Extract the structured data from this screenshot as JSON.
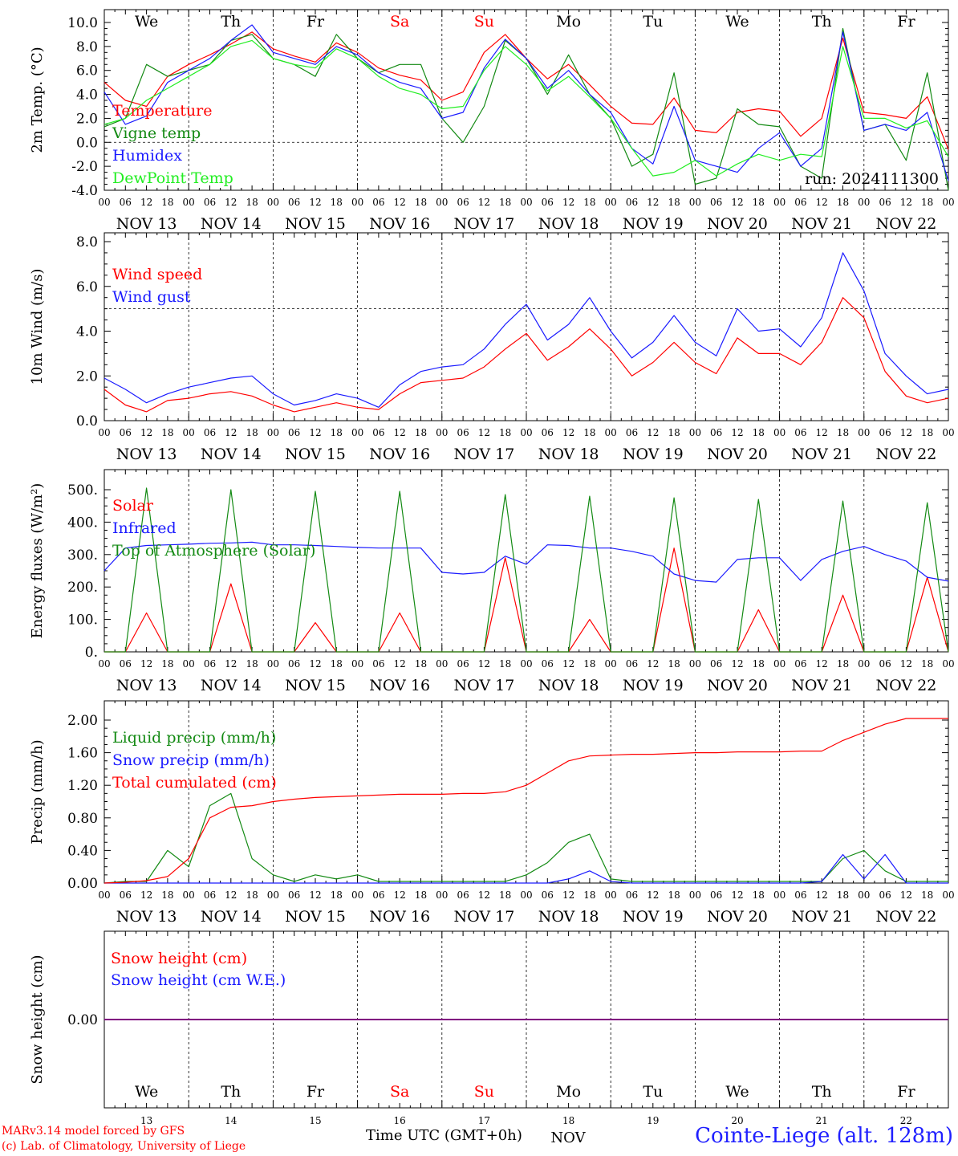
{
  "colors": {
    "red": "#ff0000",
    "green": "#138a13",
    "blue": "#1a1aff",
    "lightgreen": "#22ee22",
    "purple": "#800080",
    "axis": "#000000"
  },
  "days": [
    "We",
    "Th",
    "Fr",
    "Sa",
    "Su",
    "Mo",
    "Tu",
    "We",
    "Th",
    "Fr"
  ],
  "weekend_days": [
    "Sa",
    "Su"
  ],
  "dates": [
    "NOV 13",
    "NOV 14",
    "NOV 15",
    "NOV 16",
    "NOV 17",
    "NOV 18",
    "NOV 19",
    "NOV 20",
    "NOV 21",
    "NOV 22"
  ],
  "day_numbers": [
    "13",
    "14",
    "15",
    "16",
    "17",
    "18",
    "19",
    "20",
    "21",
    "22"
  ],
  "hour_ticks": [
    "00",
    "06",
    "12",
    "18"
  ],
  "hour_tick_end": "00",
  "month_label": "NOV",
  "footer": {
    "model_line": "MARv3.14 model forced by GFS",
    "credit_line": "(c) Lab. of Climatology, University of Liege",
    "xlabel": "Time UTC (GMT+0h)",
    "station": "Cointe-Liege (alt. 128m)"
  },
  "chart_data": [
    {
      "type": "line",
      "ylabel": "2m Temp. (°C)",
      "ylim": [
        -4,
        11
      ],
      "yticks": [
        "10.0",
        "8.0",
        "6.0",
        "4.0",
        "2.0",
        "0.0",
        "-2.0",
        "-4.0"
      ],
      "ytick_values": [
        10,
        8,
        6,
        4,
        2,
        0,
        -2,
        -4
      ],
      "ref_line": 0,
      "annotation": "run: 2024111300",
      "x_hours": [
        0,
        6,
        12,
        18,
        24,
        30,
        36,
        42,
        48,
        54,
        60,
        66,
        72,
        78,
        84,
        90,
        96,
        102,
        108,
        114,
        120,
        126,
        132,
        138,
        144,
        150,
        156,
        162,
        168,
        174,
        180,
        186,
        192,
        198,
        204,
        210,
        216,
        222,
        228,
        234,
        240
      ],
      "series": [
        {
          "name": "Temperature",
          "color": "red",
          "values": [
            5.0,
            3.5,
            3.0,
            5.5,
            6.5,
            7.3,
            8.2,
            9.2,
            7.8,
            7.2,
            6.7,
            8.3,
            7.5,
            6.2,
            5.6,
            5.2,
            3.5,
            4.2,
            7.5,
            9.0,
            7.0,
            5.3,
            6.5,
            4.8,
            3.0,
            1.6,
            1.5,
            3.7,
            1.0,
            0.8,
            2.5,
            2.8,
            2.6,
            0.5,
            2.0,
            8.7,
            2.5,
            2.3,
            2.0,
            3.8,
            -0.6
          ]
        },
        {
          "name": "Vigne temp",
          "color": "green",
          "values": [
            1.3,
            2.0,
            6.5,
            5.5,
            6.0,
            6.5,
            8.5,
            9.0,
            7.0,
            6.5,
            5.5,
            9.0,
            7.0,
            5.8,
            6.5,
            6.5,
            2.0,
            0.0,
            3.0,
            8.5,
            7.0,
            4.0,
            7.3,
            4.0,
            2.0,
            -2.0,
            -1.0,
            5.8,
            -3.5,
            -3.0,
            2.8,
            1.5,
            1.3,
            -2.0,
            -3.0,
            9.5,
            1.0,
            1.5,
            -1.5,
            5.8,
            -4.0
          ]
        },
        {
          "name": "Humidex",
          "color": "blue",
          "values": [
            4.2,
            1.5,
            2.2,
            5.0,
            6.0,
            7.0,
            8.5,
            9.8,
            7.5,
            7.0,
            6.5,
            8.0,
            7.3,
            5.8,
            5.0,
            4.5,
            2.0,
            2.5,
            6.2,
            8.6,
            7.0,
            4.5,
            6.0,
            4.0,
            2.5,
            -0.5,
            -1.8,
            3.0,
            -1.5,
            -2.0,
            -2.5,
            -0.5,
            0.8,
            -2.0,
            -0.5,
            9.2,
            1.0,
            1.5,
            1.0,
            2.5,
            -3.2
          ]
        },
        {
          "name": "DewPoint Temp",
          "color": "lightgreen",
          "values": [
            1.5,
            2.0,
            3.5,
            4.5,
            5.5,
            6.5,
            8.0,
            8.5,
            7.0,
            6.5,
            6.2,
            7.8,
            7.0,
            5.5,
            4.5,
            4.0,
            2.8,
            3.0,
            6.0,
            8.0,
            6.5,
            4.3,
            5.5,
            3.8,
            2.0,
            -0.5,
            -2.8,
            -2.5,
            -1.5,
            -2.8,
            -1.8,
            -1.0,
            -1.5,
            -1.0,
            -1.2,
            8.0,
            2.0,
            2.0,
            1.2,
            1.8,
            -1.2
          ]
        }
      ]
    },
    {
      "type": "line",
      "ylabel": "10m Wind (m/s)",
      "ylim": [
        0,
        8
      ],
      "yticks": [
        "8.0",
        "6.0",
        "4.0",
        "2.0",
        "0.0"
      ],
      "ytick_values": [
        8,
        6,
        4,
        2,
        0
      ],
      "ref_line": 5,
      "x_hours": [
        0,
        6,
        12,
        18,
        24,
        30,
        36,
        42,
        48,
        54,
        60,
        66,
        72,
        78,
        84,
        90,
        96,
        102,
        108,
        114,
        120,
        126,
        132,
        138,
        144,
        150,
        156,
        162,
        168,
        174,
        180,
        186,
        192,
        198,
        204,
        210,
        216,
        222,
        228,
        234,
        240
      ],
      "series": [
        {
          "name": "Wind speed",
          "color": "red",
          "values": [
            1.4,
            0.7,
            0.4,
            0.9,
            1.0,
            1.2,
            1.3,
            1.1,
            0.7,
            0.4,
            0.6,
            0.8,
            0.6,
            0.5,
            1.2,
            1.7,
            1.8,
            1.9,
            2.4,
            3.2,
            3.9,
            2.7,
            3.3,
            4.1,
            3.2,
            2.0,
            2.6,
            3.5,
            2.6,
            2.1,
            3.7,
            3.0,
            3.0,
            2.5,
            3.5,
            5.5,
            4.6,
            2.2,
            1.1,
            0.8,
            1.0
          ]
        },
        {
          "name": "Wind gust",
          "color": "blue",
          "values": [
            1.9,
            1.4,
            0.8,
            1.2,
            1.5,
            1.7,
            1.9,
            2.0,
            1.2,
            0.7,
            0.9,
            1.2,
            1.0,
            0.6,
            1.6,
            2.2,
            2.4,
            2.5,
            3.2,
            4.3,
            5.2,
            3.6,
            4.3,
            5.5,
            4.0,
            2.8,
            3.5,
            4.7,
            3.5,
            2.9,
            5.0,
            4.0,
            4.1,
            3.3,
            4.6,
            7.5,
            5.8,
            3.0,
            2.0,
            1.2,
            1.4
          ]
        }
      ]
    },
    {
      "type": "line",
      "ylabel": "Energy fluxes (W/m²)",
      "ylim": [
        0,
        550
      ],
      "yticks": [
        "500.",
        "400.",
        "300.",
        "200.",
        "100.",
        "0."
      ],
      "ytick_values": [
        500,
        400,
        300,
        200,
        100,
        0
      ],
      "x_hours": [
        0,
        6,
        12,
        18,
        24,
        30,
        36,
        42,
        48,
        54,
        60,
        66,
        72,
        78,
        84,
        90,
        96,
        102,
        108,
        114,
        120,
        126,
        132,
        138,
        144,
        150,
        156,
        162,
        168,
        174,
        180,
        186,
        192,
        198,
        204,
        210,
        216,
        222,
        228,
        234,
        240
      ],
      "series": [
        {
          "name": "Solar",
          "color": "red",
          "values": [
            0,
            0,
            120,
            0,
            0,
            0,
            210,
            0,
            0,
            0,
            90,
            0,
            0,
            0,
            120,
            0,
            0,
            0,
            0,
            290,
            0,
            0,
            0,
            100,
            0,
            0,
            0,
            320,
            0,
            0,
            0,
            130,
            0,
            0,
            0,
            175,
            0,
            0,
            0,
            230,
            0
          ]
        },
        {
          "name": "Infrared",
          "color": "blue",
          "values": [
            250,
            320,
            328,
            330,
            332,
            335,
            336,
            338,
            330,
            330,
            328,
            325,
            322,
            320,
            320,
            320,
            245,
            240,
            245,
            295,
            270,
            330,
            328,
            320,
            320,
            310,
            295,
            240,
            220,
            215,
            285,
            290,
            290,
            220,
            285,
            310,
            325,
            300,
            280,
            230,
            218
          ]
        },
        {
          "name": "Top of Atmosphere (Solar)",
          "color": "green",
          "values": [
            0,
            0,
            505,
            0,
            0,
            0,
            500,
            0,
            0,
            0,
            495,
            0,
            0,
            0,
            495,
            0,
            0,
            0,
            0,
            485,
            0,
            0,
            0,
            480,
            0,
            0,
            0,
            475,
            0,
            0,
            0,
            470,
            0,
            0,
            0,
            465,
            0,
            0,
            0,
            460,
            0
          ]
        }
      ]
    },
    {
      "type": "line",
      "ylabel": "Precip (mm/h)",
      "ylim": [
        0,
        2.2
      ],
      "yticks": [
        "2.00",
        "1.60",
        "1.20",
        "0.80",
        "0.40",
        "0.00"
      ],
      "ytick_values": [
        2.0,
        1.6,
        1.2,
        0.8,
        0.4,
        0.0
      ],
      "x_hours": [
        0,
        6,
        12,
        18,
        24,
        30,
        36,
        42,
        48,
        54,
        60,
        66,
        72,
        78,
        84,
        90,
        96,
        102,
        108,
        114,
        120,
        126,
        132,
        138,
        144,
        150,
        156,
        162,
        168,
        174,
        180,
        186,
        192,
        198,
        204,
        210,
        216,
        222,
        228,
        234,
        240
      ],
      "series": [
        {
          "name": "Liquid precip (mm/h)",
          "color": "green",
          "values": [
            0,
            0.02,
            0.02,
            0.4,
            0.2,
            0.95,
            1.1,
            0.3,
            0.1,
            0.02,
            0.1,
            0.05,
            0.1,
            0.02,
            0.02,
            0.02,
            0.02,
            0.02,
            0.02,
            0.02,
            0.1,
            0.25,
            0.5,
            0.6,
            0.05,
            0.02,
            0.02,
            0.02,
            0.02,
            0.02,
            0.02,
            0.02,
            0.02,
            0.02,
            0.02,
            0.3,
            0.4,
            0.15,
            0.02,
            0.02,
            0.02
          ]
        },
        {
          "name": "Snow precip (mm/h)",
          "color": "blue",
          "values": [
            0,
            0,
            0,
            0,
            0,
            0,
            0,
            0,
            0,
            0,
            0,
            0,
            0,
            0,
            0,
            0,
            0,
            0,
            0,
            0,
            0,
            0,
            0.05,
            0.15,
            0.02,
            0,
            0,
            0,
            0,
            0,
            0,
            0,
            0,
            0,
            0.02,
            0.35,
            0.05,
            0.35,
            0,
            0,
            0
          ]
        },
        {
          "name": "Total cumulated (cm)",
          "color": "red",
          "values": [
            0,
            0.01,
            0.03,
            0.08,
            0.3,
            0.8,
            0.93,
            0.95,
            1.0,
            1.03,
            1.05,
            1.06,
            1.07,
            1.08,
            1.09,
            1.09,
            1.09,
            1.1,
            1.1,
            1.12,
            1.2,
            1.35,
            1.5,
            1.56,
            1.57,
            1.58,
            1.58,
            1.59,
            1.6,
            1.6,
            1.61,
            1.61,
            1.61,
            1.62,
            1.62,
            1.75,
            1.85,
            1.95,
            2.02,
            2.02,
            2.02
          ]
        }
      ]
    },
    {
      "type": "line",
      "ylabel": "Snow height (cm)",
      "ylim": [
        -1,
        1
      ],
      "yticks": [
        "0.00"
      ],
      "ytick_values": [
        0
      ],
      "x_hours": [
        0,
        240
      ],
      "series": [
        {
          "name": "Snow height (cm)",
          "color": "red",
          "values": [
            0,
            0
          ]
        },
        {
          "name": "Snow height (cm W.E.)",
          "color": "blue",
          "values": [
            0,
            0
          ]
        },
        {
          "name": "",
          "color": "purple",
          "values": [
            0,
            0
          ]
        }
      ]
    }
  ]
}
